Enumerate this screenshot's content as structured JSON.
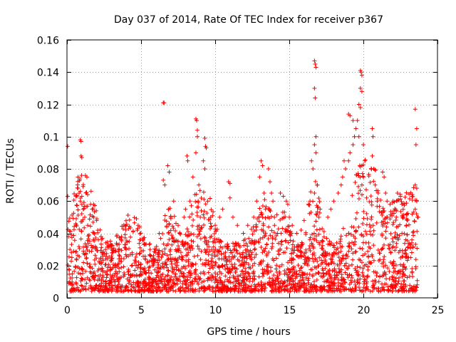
{
  "chart_data": {
    "type": "scatter",
    "title": "Day 037 of 2014, Rate Of TEC Index for receiver p367",
    "xlabel": "GPS time / hours",
    "ylabel": "ROTI / TECUs",
    "xlim": [
      0,
      25
    ],
    "ylim": [
      0,
      0.16
    ],
    "x_ticks": [
      0,
      5,
      10,
      15,
      20,
      25
    ],
    "x_tick_labels": [
      "0",
      "5",
      "10",
      "15",
      "20",
      "25"
    ],
    "y_ticks": [
      0,
      0.02,
      0.04,
      0.06,
      0.08,
      0.1,
      0.12,
      0.14,
      0.16
    ],
    "y_tick_labels": [
      "0",
      "0.02",
      "0.04",
      "0.06",
      "0.08",
      "0.1",
      "0.12",
      "0.14",
      "0.16"
    ],
    "grid": true,
    "marker": "+",
    "color": "#ff0000",
    "series": [
      {
        "name": "ROTI",
        "baseline_description": "dense cloud of points mostly between 0.005 and 0.035 TECU/min across the day",
        "points": [
          [
            0.05,
            0.094
          ],
          [
            0.05,
            0.063
          ],
          [
            0.1,
            0.038
          ],
          [
            0.2,
            0.03
          ],
          [
            0.3,
            0.028
          ],
          [
            0.9,
            0.098
          ],
          [
            0.95,
            0.097
          ],
          [
            0.95,
            0.088
          ],
          [
            1.0,
            0.087
          ],
          [
            0.9,
            0.066
          ],
          [
            1.0,
            0.063
          ],
          [
            0.9,
            0.06
          ],
          [
            1.1,
            0.055
          ],
          [
            1.2,
            0.05
          ],
          [
            1.4,
            0.045
          ],
          [
            1.6,
            0.058
          ],
          [
            1.7,
            0.055
          ],
          [
            1.8,
            0.05
          ],
          [
            2.0,
            0.048
          ],
          [
            2.3,
            0.038
          ],
          [
            2.6,
            0.03
          ],
          [
            3.0,
            0.026
          ],
          [
            3.5,
            0.03
          ],
          [
            3.9,
            0.033
          ],
          [
            4.2,
            0.035
          ],
          [
            4.8,
            0.045
          ],
          [
            4.9,
            0.044
          ],
          [
            5.2,
            0.033
          ],
          [
            5.6,
            0.03
          ],
          [
            6.0,
            0.03
          ],
          [
            6.5,
            0.121
          ],
          [
            6.55,
            0.121
          ],
          [
            6.5,
            0.073
          ],
          [
            6.6,
            0.07
          ],
          [
            6.8,
            0.082
          ],
          [
            6.9,
            0.078
          ],
          [
            6.85,
            0.055
          ],
          [
            7.0,
            0.05
          ],
          [
            7.2,
            0.06
          ],
          [
            7.5,
            0.045
          ],
          [
            7.6,
            0.04
          ],
          [
            7.8,
            0.035
          ],
          [
            7.9,
            0.05
          ],
          [
            8.0,
            0.055
          ],
          [
            8.1,
            0.088
          ],
          [
            8.15,
            0.085
          ],
          [
            8.3,
            0.06
          ],
          [
            8.5,
            0.075
          ],
          [
            8.7,
            0.111
          ],
          [
            8.75,
            0.11
          ],
          [
            8.8,
            0.104
          ],
          [
            8.8,
            0.1
          ],
          [
            8.7,
            0.09
          ],
          [
            8.9,
            0.07
          ],
          [
            8.85,
            0.06
          ],
          [
            9.0,
            0.05
          ],
          [
            9.3,
            0.099
          ],
          [
            9.35,
            0.094
          ],
          [
            9.4,
            0.093
          ],
          [
            9.2,
            0.085
          ],
          [
            9.3,
            0.08
          ],
          [
            9.5,
            0.06
          ],
          [
            9.7,
            0.05
          ],
          [
            10.0,
            0.045
          ],
          [
            10.3,
            0.05
          ],
          [
            10.5,
            0.055
          ],
          [
            10.9,
            0.072
          ],
          [
            11.0,
            0.071
          ],
          [
            11.0,
            0.062
          ],
          [
            11.2,
            0.05
          ],
          [
            11.5,
            0.045
          ],
          [
            11.9,
            0.04
          ],
          [
            12.2,
            0.045
          ],
          [
            12.6,
            0.05
          ],
          [
            12.8,
            0.06
          ],
          [
            13.1,
            0.085
          ],
          [
            13.2,
            0.082
          ],
          [
            13.0,
            0.075
          ],
          [
            13.3,
            0.065
          ],
          [
            13.2,
            0.05
          ],
          [
            13.4,
            0.055
          ],
          [
            13.6,
            0.08
          ],
          [
            13.7,
            0.072
          ],
          [
            13.8,
            0.065
          ],
          [
            13.9,
            0.06
          ],
          [
            14.0,
            0.05
          ],
          [
            14.2,
            0.04
          ],
          [
            14.4,
            0.065
          ],
          [
            14.6,
            0.063
          ],
          [
            14.8,
            0.06
          ],
          [
            14.9,
            0.058
          ],
          [
            15.0,
            0.05
          ],
          [
            15.2,
            0.045
          ],
          [
            15.5,
            0.04
          ],
          [
            15.8,
            0.042
          ],
          [
            16.0,
            0.048
          ],
          [
            16.3,
            0.058
          ],
          [
            16.4,
            0.06
          ],
          [
            16.7,
            0.147
          ],
          [
            16.75,
            0.145
          ],
          [
            16.8,
            0.143
          ],
          [
            16.7,
            0.13
          ],
          [
            16.75,
            0.124
          ],
          [
            16.8,
            0.1
          ],
          [
            16.7,
            0.095
          ],
          [
            16.8,
            0.09
          ],
          [
            16.5,
            0.085
          ],
          [
            16.6,
            0.08
          ],
          [
            16.9,
            0.07
          ],
          [
            16.7,
            0.065
          ],
          [
            17.0,
            0.05
          ],
          [
            17.6,
            0.05
          ],
          [
            17.8,
            0.055
          ],
          [
            18.0,
            0.06
          ],
          [
            18.3,
            0.065
          ],
          [
            18.5,
            0.07
          ],
          [
            18.7,
            0.085
          ],
          [
            18.8,
            0.08
          ],
          [
            18.6,
            0.075
          ],
          [
            19.0,
            0.085
          ],
          [
            19.1,
            0.09
          ],
          [
            19.0,
            0.114
          ],
          [
            19.1,
            0.113
          ],
          [
            19.3,
            0.11
          ],
          [
            19.4,
            0.1
          ],
          [
            19.3,
            0.095
          ],
          [
            19.5,
            0.105
          ],
          [
            19.8,
            0.141
          ],
          [
            19.85,
            0.14
          ],
          [
            19.9,
            0.138
          ],
          [
            19.8,
            0.13
          ],
          [
            19.9,
            0.128
          ],
          [
            19.7,
            0.12
          ],
          [
            19.8,
            0.118
          ],
          [
            19.6,
            0.11
          ],
          [
            19.7,
            0.1
          ],
          [
            20.0,
            0.095
          ],
          [
            20.1,
            0.085
          ],
          [
            20.0,
            0.075
          ],
          [
            19.9,
            0.07
          ],
          [
            20.6,
            0.105
          ],
          [
            20.65,
            0.1
          ],
          [
            20.6,
            0.088
          ],
          [
            20.7,
            0.08
          ],
          [
            20.8,
            0.07
          ],
          [
            21.0,
            0.065
          ],
          [
            21.3,
            0.078
          ],
          [
            21.4,
            0.075
          ],
          [
            21.5,
            0.065
          ],
          [
            21.6,
            0.06
          ],
          [
            21.8,
            0.058
          ],
          [
            22.0,
            0.06
          ],
          [
            22.3,
            0.065
          ],
          [
            22.5,
            0.063
          ],
          [
            22.6,
            0.058
          ],
          [
            22.7,
            0.05
          ],
          [
            22.9,
            0.045
          ],
          [
            23.5,
            0.117
          ],
          [
            23.6,
            0.105
          ],
          [
            23.55,
            0.095
          ],
          [
            23.5,
            0.07
          ],
          [
            23.6,
            0.068
          ],
          [
            23.6,
            0.06
          ],
          [
            23.5,
            0.055
          ],
          [
            23.7,
            0.05
          ]
        ]
      }
    ]
  }
}
